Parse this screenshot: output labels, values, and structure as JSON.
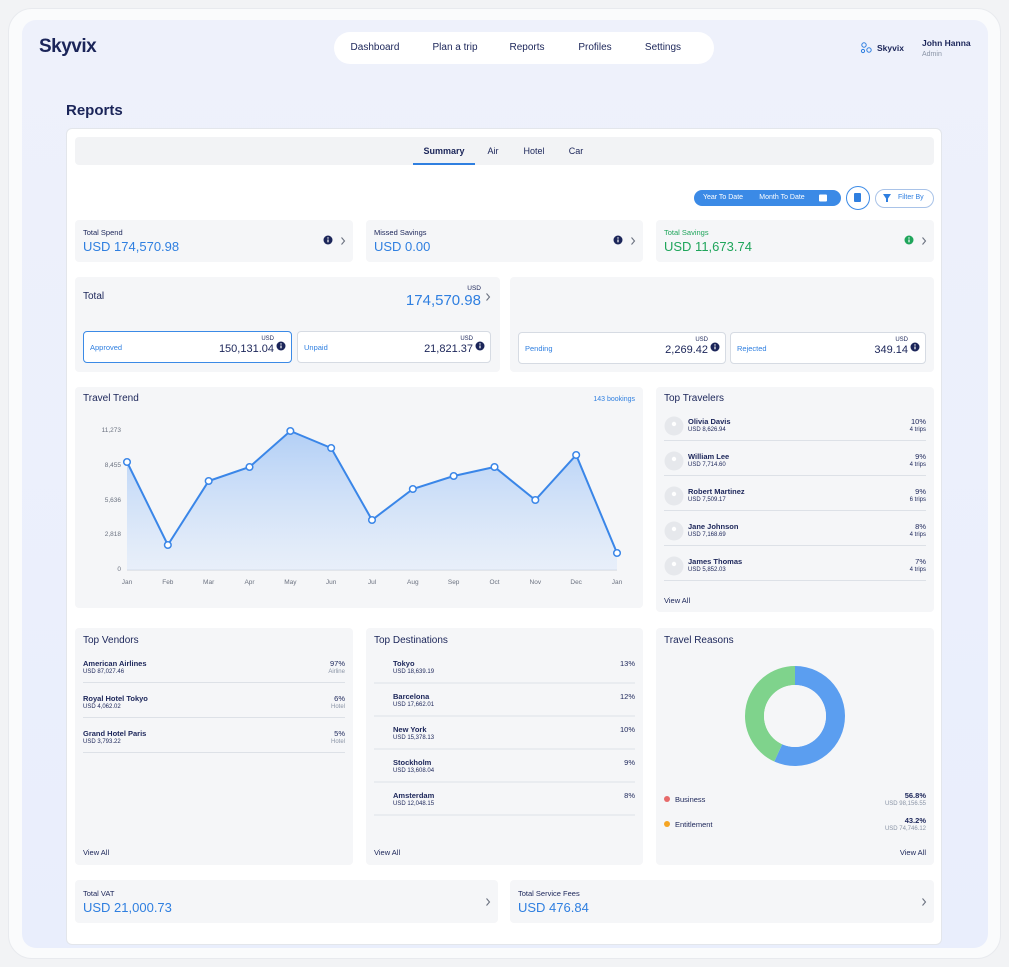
{
  "header": {
    "logo": "Skyvix",
    "nav": [
      "Dashboard",
      "Plan a trip",
      "Reports",
      "Profiles",
      "Settings"
    ],
    "org": "Skyvix",
    "user_name": "John Hanna",
    "user_role": "Admin"
  },
  "page_title": "Reports",
  "tabs": [
    "Summary",
    "Air",
    "Hotel",
    "Car"
  ],
  "filters": {
    "period_options": [
      "Year To Date",
      "Month To Date"
    ],
    "filter_button": "Filter By"
  },
  "summary_cards": [
    {
      "label": "Total Spend",
      "value": "USD 174,570.98"
    },
    {
      "label": "Missed Savings",
      "value": "USD 0.00"
    },
    {
      "label": "Total Savings",
      "value": "USD 11,673.74"
    }
  ],
  "total": {
    "label": "Total",
    "currency": "USD",
    "amount": "174,570.98",
    "statuses": [
      {
        "label": "Approved",
        "currency": "USD",
        "amount": "150,131.04"
      },
      {
        "label": "Unpaid",
        "currency": "USD",
        "amount": "21,821.37"
      },
      {
        "label": "Pending",
        "currency": "USD",
        "amount": "2,269.42"
      },
      {
        "label": "Rejected",
        "currency": "USD",
        "amount": "349.14"
      }
    ]
  },
  "travel_trend": {
    "title": "Travel Trend",
    "bookings": "143 bookings",
    "chart_data": {
      "type": "line",
      "categories": [
        "Jan",
        "Feb",
        "Mar",
        "Apr",
        "May",
        "Jun",
        "Jul",
        "Aug",
        "Sep",
        "Oct",
        "Nov",
        "Dec",
        "Jan"
      ],
      "values": [
        8759,
        2028,
        7218,
        8353,
        11273,
        9894,
        4055,
        6569,
        7623,
        8353,
        5677,
        9326,
        1379
      ],
      "color": "#3a86e8",
      "ylim": [
        0,
        11273
      ],
      "yticks": [
        0,
        {
          "value": 2818,
          "label": "2,818"
        },
        {
          "value": 5636,
          "label": "5,636"
        },
        {
          "value": 8455,
          "label": "8,455"
        },
        {
          "value": 11273,
          "label": "11,273"
        }
      ]
    }
  },
  "top_travelers": {
    "title": "Top Travelers",
    "view_all": "View All",
    "rows": [
      {
        "name": "Olivia Davis",
        "amount": "USD 8,626.94",
        "share": "10%",
        "trips": "4 trips"
      },
      {
        "name": "William Lee",
        "amount": "USD 7,714.60",
        "share": "9%",
        "trips": "4 trips"
      },
      {
        "name": "Robert Martinez",
        "amount": "USD 7,509.17",
        "share": "9%",
        "trips": "6 trips"
      },
      {
        "name": "Jane Johnson",
        "amount": "USD 7,168.69",
        "share": "8%",
        "trips": "4 trips"
      },
      {
        "name": "James Thomas",
        "amount": "USD 5,852.03",
        "share": "7%",
        "trips": "4 trips"
      }
    ]
  },
  "top_vendors": {
    "title": "Top Vendors",
    "view_all": "View All",
    "rows": [
      {
        "name": "American Airlines",
        "amount": "USD 87,027.46",
        "share": "97%",
        "kind": "Airline"
      },
      {
        "name": "Royal Hotel Tokyo",
        "amount": "USD 4,062.02",
        "share": "6%",
        "kind": "Hotel"
      },
      {
        "name": "Grand Hotel Paris",
        "amount": "USD 3,793.22",
        "share": "5%",
        "kind": "Hotel"
      }
    ]
  },
  "top_destinations": {
    "title": "Top Destinations",
    "view_all": "View All",
    "rows": [
      {
        "name": "Tokyo",
        "amount": "USD 18,639.19",
        "share": "13%"
      },
      {
        "name": "Barcelona",
        "amount": "USD 17,662.01",
        "share": "12%"
      },
      {
        "name": "New York",
        "amount": "USD 15,378.13",
        "share": "10%"
      },
      {
        "name": "Stockholm",
        "amount": "USD 13,608.04",
        "share": "9%"
      },
      {
        "name": "Amsterdam",
        "amount": "USD 12,048.15",
        "share": "8%"
      }
    ]
  },
  "travel_reasons": {
    "title": "Travel Reasons",
    "view_all": "View All",
    "legend_amounts": [
      "USD 98,156.55",
      "USD 74,746.12"
    ],
    "legend_colors": [
      "#e76a6a",
      "#f5a524"
    ],
    "chart_data": {
      "type": "donut",
      "categories": [
        "Business",
        "Entitlement"
      ],
      "values": [
        56.8,
        43.2
      ],
      "value_labels": [
        "56.8%",
        "43.2%"
      ],
      "colors": [
        "#5b9ef0",
        "#7fd38c"
      ]
    }
  },
  "bottom_cards": [
    {
      "label": "Total VAT",
      "value": "USD 21,000.73"
    },
    {
      "label": "Total Service Fees",
      "value": "USD 476.84"
    }
  ]
}
